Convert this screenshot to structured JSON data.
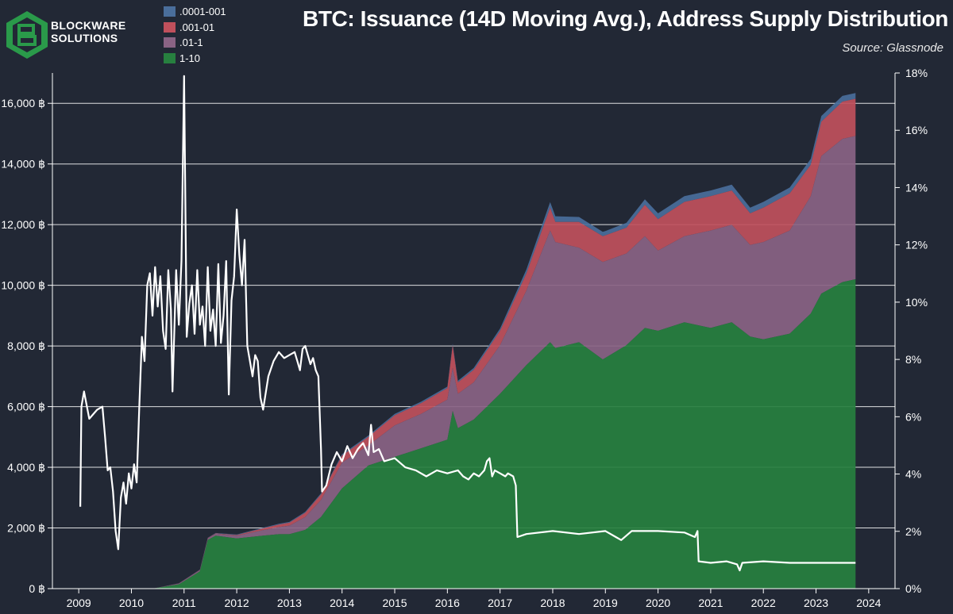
{
  "brand": {
    "line1": "BLOCKWARE",
    "line2": "SOLUTIONS"
  },
  "title": "BTC: Issuance (14D Moving Avg.), Address Supply Distribution",
  "source": "Source: Glassnode",
  "legend": [
    {
      "label": ".0001-001",
      "color": "#4a6e9b"
    },
    {
      "label": ".001-01",
      "color": "#c0505c"
    },
    {
      "label": ".01-1",
      "color": "#8a6384"
    },
    {
      "label": "1-10",
      "color": "#27803f"
    }
  ],
  "colors": {
    "background": "#222835",
    "grid": "#ffffff",
    "issuance_line": "#ffffff",
    "logo": "#2a9a4a"
  },
  "chart_data": {
    "type": "area",
    "title": "BTC: Issuance (14D Moving Avg.), Address Supply Distribution",
    "xlabel": "",
    "ylabel_left": "",
    "ylabel_right": "",
    "x_ticks": [
      "2009",
      "2010",
      "2011",
      "2012",
      "2013",
      "2014",
      "2015",
      "2016",
      "2017",
      "2018",
      "2019",
      "2020",
      "2021",
      "2022",
      "2023",
      "2024"
    ],
    "y_left_ticks": [
      "0 ฿",
      "2,000 ฿",
      "4,000 ฿",
      "6,000 ฿",
      "8,000 ฿",
      "10,000 ฿",
      "12,000 ฿",
      "14,000 ฿",
      "16,000 ฿"
    ],
    "y_right_ticks": [
      "0%",
      "2%",
      "4%",
      "6%",
      "8%",
      "10%",
      "12%",
      "14%",
      "16%",
      "18%"
    ],
    "y_left_range": [
      0,
      17000
    ],
    "y_right_range": [
      0,
      18
    ],
    "grid": true,
    "legend_position": "top-left",
    "series": [
      {
        "name": "1-10",
        "axis": "right",
        "stack": "supply",
        "points": [
          [
            2010.4,
            0.0
          ],
          [
            2010.9,
            0.15
          ],
          [
            2011.3,
            0.6
          ],
          [
            2011.45,
            1.7
          ],
          [
            2011.6,
            1.85
          ],
          [
            2012.0,
            1.75
          ],
          [
            2012.5,
            1.85
          ],
          [
            2012.8,
            1.9
          ],
          [
            2013.0,
            1.9
          ],
          [
            2013.3,
            2.05
          ],
          [
            2013.6,
            2.5
          ],
          [
            2014.0,
            3.5
          ],
          [
            2014.5,
            4.3
          ],
          [
            2015.0,
            4.6
          ],
          [
            2015.5,
            4.9
          ],
          [
            2016.0,
            5.2
          ],
          [
            2016.1,
            6.2
          ],
          [
            2016.2,
            5.6
          ],
          [
            2016.5,
            5.9
          ],
          [
            2017.0,
            6.8
          ],
          [
            2017.5,
            7.8
          ],
          [
            2017.95,
            8.6
          ],
          [
            2018.05,
            8.4
          ],
          [
            2018.5,
            8.6
          ],
          [
            2018.95,
            8.0
          ],
          [
            2019.4,
            8.5
          ],
          [
            2019.75,
            9.1
          ],
          [
            2020.0,
            9.0
          ],
          [
            2020.5,
            9.3
          ],
          [
            2021.0,
            9.1
          ],
          [
            2021.4,
            9.3
          ],
          [
            2021.75,
            8.8
          ],
          [
            2022.0,
            8.7
          ],
          [
            2022.5,
            8.9
          ],
          [
            2022.9,
            9.6
          ],
          [
            2023.1,
            10.3
          ],
          [
            2023.5,
            10.7
          ],
          [
            2023.75,
            10.8
          ]
        ]
      },
      {
        "name": ".01-1",
        "axis": "right",
        "stack": "supply",
        "points": [
          [
            2010.4,
            0.0
          ],
          [
            2011.45,
            0.05
          ],
          [
            2012.0,
            0.1
          ],
          [
            2012.8,
            0.25
          ],
          [
            2013.0,
            0.3
          ],
          [
            2013.6,
            0.6
          ],
          [
            2014.0,
            0.9
          ],
          [
            2014.5,
            0.7
          ],
          [
            2015.0,
            1.1
          ],
          [
            2015.5,
            1.2
          ],
          [
            2016.0,
            1.4
          ],
          [
            2016.1,
            1.5
          ],
          [
            2016.2,
            1.2
          ],
          [
            2016.5,
            1.3
          ],
          [
            2017.0,
            1.7
          ],
          [
            2017.5,
            2.6
          ],
          [
            2017.95,
            3.9
          ],
          [
            2018.05,
            3.7
          ],
          [
            2018.5,
            3.3
          ],
          [
            2018.95,
            3.4
          ],
          [
            2019.4,
            3.2
          ],
          [
            2019.75,
            3.2
          ],
          [
            2020.0,
            2.8
          ],
          [
            2020.5,
            3.0
          ],
          [
            2021.0,
            3.4
          ],
          [
            2021.4,
            3.4
          ],
          [
            2021.75,
            3.2
          ],
          [
            2022.0,
            3.4
          ],
          [
            2022.5,
            3.6
          ],
          [
            2022.9,
            4.1
          ],
          [
            2023.1,
            4.8
          ],
          [
            2023.5,
            5.0
          ],
          [
            2023.75,
            5.0
          ]
        ]
      },
      {
        "name": ".001-01",
        "axis": "right",
        "stack": "supply",
        "points": [
          [
            2010.4,
            0.0
          ],
          [
            2012.0,
            0.02
          ],
          [
            2013.0,
            0.1
          ],
          [
            2014.0,
            0.25
          ],
          [
            2015.0,
            0.35
          ],
          [
            2016.0,
            0.4
          ],
          [
            2016.1,
            0.8
          ],
          [
            2016.2,
            0.4
          ],
          [
            2017.0,
            0.5
          ],
          [
            2017.5,
            0.6
          ],
          [
            2017.95,
            0.8
          ],
          [
            2018.05,
            0.7
          ],
          [
            2018.5,
            0.9
          ],
          [
            2018.95,
            0.9
          ],
          [
            2019.4,
            0.9
          ],
          [
            2019.75,
            1.1
          ],
          [
            2020.0,
            1.1
          ],
          [
            2020.5,
            1.2
          ],
          [
            2021.0,
            1.2
          ],
          [
            2021.4,
            1.2
          ],
          [
            2021.75,
            1.1
          ],
          [
            2022.0,
            1.2
          ],
          [
            2022.5,
            1.3
          ],
          [
            2022.9,
            1.1
          ],
          [
            2023.1,
            1.2
          ],
          [
            2023.5,
            1.3
          ],
          [
            2023.75,
            1.3
          ]
        ]
      },
      {
        "name": ".0001-001",
        "axis": "right",
        "stack": "supply",
        "points": [
          [
            2010.4,
            0.0
          ],
          [
            2013.0,
            0.03
          ],
          [
            2015.0,
            0.05
          ],
          [
            2016.0,
            0.05
          ],
          [
            2017.0,
            0.08
          ],
          [
            2018.0,
            0.2
          ],
          [
            2019.0,
            0.15
          ],
          [
            2020.0,
            0.2
          ],
          [
            2021.0,
            0.2
          ],
          [
            2022.0,
            0.2
          ],
          [
            2023.0,
            0.2
          ],
          [
            2023.75,
            0.2
          ]
        ]
      },
      {
        "name": "",
        "axis": "left",
        "type": "line",
        "points": [
          [
            2009.03,
            2700
          ],
          [
            2009.05,
            6000
          ],
          [
            2009.1,
            6500
          ],
          [
            2009.2,
            5600
          ],
          [
            2009.35,
            5900
          ],
          [
            2009.45,
            6000
          ],
          [
            2009.5,
            5000
          ],
          [
            2009.55,
            3900
          ],
          [
            2009.6,
            4000
          ],
          [
            2009.65,
            3200
          ],
          [
            2009.7,
            1900
          ],
          [
            2009.75,
            1300
          ],
          [
            2009.8,
            3000
          ],
          [
            2009.85,
            3500
          ],
          [
            2009.9,
            2800
          ],
          [
            2009.95,
            3800
          ],
          [
            2010.0,
            3300
          ],
          [
            2010.05,
            4100
          ],
          [
            2010.1,
            3500
          ],
          [
            2010.15,
            6000
          ],
          [
            2010.2,
            8300
          ],
          [
            2010.25,
            7500
          ],
          [
            2010.3,
            10000
          ],
          [
            2010.35,
            10400
          ],
          [
            2010.4,
            9000
          ],
          [
            2010.45,
            10600
          ],
          [
            2010.5,
            9300
          ],
          [
            2010.55,
            10300
          ],
          [
            2010.6,
            8500
          ],
          [
            2010.65,
            7900
          ],
          [
            2010.7,
            10500
          ],
          [
            2010.75,
            9200
          ],
          [
            2010.78,
            6500
          ],
          [
            2010.85,
            10500
          ],
          [
            2010.9,
            8700
          ],
          [
            2010.95,
            10800
          ],
          [
            2011.0,
            16900
          ],
          [
            2011.05,
            8300
          ],
          [
            2011.1,
            9400
          ],
          [
            2011.15,
            10000
          ],
          [
            2011.2,
            8400
          ],
          [
            2011.25,
            10500
          ],
          [
            2011.3,
            8700
          ],
          [
            2011.35,
            9300
          ],
          [
            2011.4,
            8000
          ],
          [
            2011.45,
            10600
          ],
          [
            2011.5,
            8500
          ],
          [
            2011.55,
            9200
          ],
          [
            2011.6,
            8000
          ],
          [
            2011.65,
            10700
          ],
          [
            2011.7,
            8100
          ],
          [
            2011.75,
            9000
          ],
          [
            2011.8,
            10800
          ],
          [
            2011.85,
            6400
          ],
          [
            2011.9,
            9500
          ],
          [
            2011.95,
            10300
          ],
          [
            2012.0,
            12500
          ],
          [
            2012.05,
            11000
          ],
          [
            2012.1,
            10000
          ],
          [
            2012.15,
            11500
          ],
          [
            2012.2,
            8000
          ],
          [
            2012.25,
            7500
          ],
          [
            2012.3,
            7000
          ],
          [
            2012.35,
            7700
          ],
          [
            2012.4,
            7500
          ],
          [
            2012.45,
            6300
          ],
          [
            2012.5,
            5900
          ],
          [
            2012.6,
            7000
          ],
          [
            2012.7,
            7500
          ],
          [
            2012.8,
            7800
          ],
          [
            2012.9,
            7600
          ],
          [
            2013.0,
            7700
          ],
          [
            2013.1,
            7800
          ],
          [
            2013.15,
            7500
          ],
          [
            2013.2,
            7200
          ],
          [
            2013.25,
            7900
          ],
          [
            2013.3,
            8000
          ],
          [
            2013.35,
            7700
          ],
          [
            2013.4,
            7400
          ],
          [
            2013.45,
            7600
          ],
          [
            2013.5,
            7200
          ],
          [
            2013.55,
            7000
          ],
          [
            2013.6,
            4600
          ],
          [
            2013.62,
            3200
          ],
          [
            2013.7,
            3400
          ],
          [
            2013.8,
            4100
          ],
          [
            2013.9,
            4500
          ],
          [
            2014.0,
            4200
          ],
          [
            2014.1,
            4700
          ],
          [
            2014.2,
            4300
          ],
          [
            2014.3,
            4600
          ],
          [
            2014.4,
            4800
          ],
          [
            2014.5,
            4400
          ],
          [
            2014.55,
            5400
          ],
          [
            2014.6,
            4500
          ],
          [
            2014.7,
            4600
          ],
          [
            2014.8,
            4200
          ],
          [
            2015.0,
            4300
          ],
          [
            2015.2,
            4000
          ],
          [
            2015.4,
            3900
          ],
          [
            2015.6,
            3700
          ],
          [
            2015.8,
            3900
          ],
          [
            2016.0,
            3800
          ],
          [
            2016.2,
            3900
          ],
          [
            2016.3,
            3700
          ],
          [
            2016.4,
            3600
          ],
          [
            2016.5,
            3800
          ],
          [
            2016.6,
            3700
          ],
          [
            2016.7,
            3900
          ],
          [
            2016.75,
            4200
          ],
          [
            2016.8,
            4300
          ],
          [
            2016.85,
            3700
          ],
          [
            2016.9,
            3900
          ],
          [
            2017.0,
            3800
          ],
          [
            2017.1,
            3700
          ],
          [
            2017.15,
            3800
          ],
          [
            2017.25,
            3700
          ],
          [
            2017.3,
            3400
          ],
          [
            2017.33,
            1700
          ],
          [
            2017.5,
            1800
          ],
          [
            2018.0,
            1900
          ],
          [
            2018.5,
            1800
          ],
          [
            2019.0,
            1900
          ],
          [
            2019.2,
            1700
          ],
          [
            2019.3,
            1600
          ],
          [
            2019.5,
            1900
          ],
          [
            2020.0,
            1900
          ],
          [
            2020.5,
            1850
          ],
          [
            2020.7,
            1700
          ],
          [
            2020.75,
            1900
          ],
          [
            2020.77,
            900
          ],
          [
            2021.0,
            850
          ],
          [
            2021.3,
            900
          ],
          [
            2021.5,
            800
          ],
          [
            2021.55,
            600
          ],
          [
            2021.6,
            850
          ],
          [
            2022.0,
            900
          ],
          [
            2022.5,
            850
          ],
          [
            2023.0,
            850
          ],
          [
            2023.5,
            850
          ],
          [
            2023.75,
            850
          ]
        ]
      }
    ]
  }
}
